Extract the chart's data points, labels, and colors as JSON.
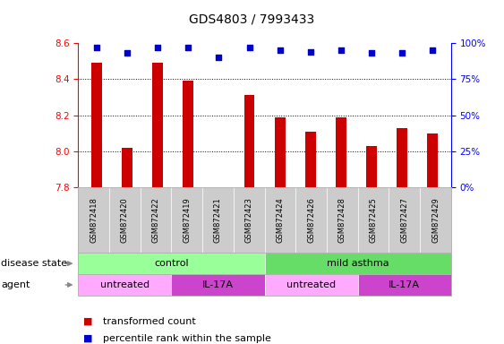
{
  "title": "GDS4803 / 7993433",
  "samples": [
    "GSM872418",
    "GSM872420",
    "GSM872422",
    "GSM872419",
    "GSM872421",
    "GSM872423",
    "GSM872424",
    "GSM872426",
    "GSM872428",
    "GSM872425",
    "GSM872427",
    "GSM872429"
  ],
  "bar_values": [
    8.49,
    8.02,
    8.49,
    8.39,
    7.8,
    8.31,
    8.19,
    8.11,
    8.19,
    8.03,
    8.13,
    8.1
  ],
  "dot_values": [
    97,
    93,
    97,
    97,
    90,
    97,
    95,
    94,
    95,
    93,
    93,
    95
  ],
  "ylim_left": [
    7.8,
    8.6
  ],
  "ylim_right": [
    0,
    100
  ],
  "yticks_left": [
    7.8,
    8.0,
    8.2,
    8.4,
    8.6
  ],
  "yticks_right": [
    0,
    25,
    50,
    75,
    100
  ],
  "bar_color": "#cc0000",
  "dot_color": "#0000cc",
  "bar_bottom": 7.8,
  "disease_state_color": "#99ff99",
  "disease_state_color2": "#66dd66",
  "agent_color_light": "#ffaaff",
  "agent_color_dark": "#cc44cc",
  "tick_bg_color": "#cccccc",
  "title_fontsize": 10,
  "label_fontsize": 8,
  "tick_fontsize": 7.5,
  "sample_fontsize": 6,
  "legend_fontsize": 8
}
